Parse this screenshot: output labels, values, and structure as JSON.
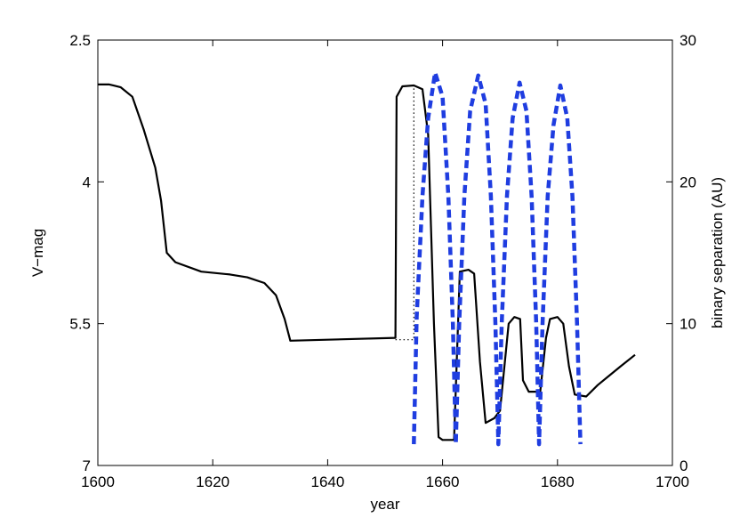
{
  "chart_data": {
    "type": "line",
    "title": "",
    "xlabel": "year",
    "ylabel_left": "V−mag",
    "ylabel_right": "binary separation (AU)",
    "xlim": [
      1600,
      1700
    ],
    "ylim_left": [
      7,
      2.5
    ],
    "ylim_right": [
      0,
      30
    ],
    "left_y_inverted": true,
    "grid": false,
    "legend": "none",
    "x_ticks": [
      "1600",
      "1620",
      "1640",
      "1660",
      "1680",
      "1700"
    ],
    "y_left_ticks": [
      "2.5",
      "4",
      "5.5",
      "7"
    ],
    "y_right_ticks": [
      "0",
      "10",
      "20",
      "30"
    ],
    "series": [
      {
        "axis": "left",
        "style": "solid",
        "color": "#000000",
        "points": [
          [
            1600,
            2.97
          ],
          [
            1602,
            2.97
          ],
          [
            1604,
            3.0
          ],
          [
            1606,
            3.1
          ],
          [
            1608,
            3.45
          ],
          [
            1610,
            3.85
          ],
          [
            1611,
            4.2
          ],
          [
            1612,
            4.75
          ],
          [
            1613.5,
            4.85
          ],
          [
            1618,
            4.95
          ],
          [
            1623,
            4.98
          ],
          [
            1626,
            5.01
          ],
          [
            1629,
            5.07
          ],
          [
            1631,
            5.2
          ],
          [
            1632.5,
            5.45
          ],
          [
            1633.5,
            5.68
          ],
          [
            1651.8,
            5.65
          ],
          [
            1652,
            3.1
          ],
          [
            1653,
            2.99
          ],
          [
            1655,
            2.98
          ],
          [
            1656.5,
            3.02
          ],
          [
            1657.5,
            3.5
          ],
          [
            1658.5,
            5.5
          ],
          [
            1659.3,
            6.7
          ],
          [
            1660,
            6.73
          ],
          [
            1662,
            6.73
          ],
          [
            1663,
            4.95
          ],
          [
            1664.5,
            4.93
          ],
          [
            1665.5,
            4.97
          ],
          [
            1666.5,
            5.9
          ],
          [
            1667.5,
            6.55
          ],
          [
            1669,
            6.5
          ],
          [
            1670,
            6.42
          ],
          [
            1671.5,
            5.5
          ],
          [
            1672.5,
            5.43
          ],
          [
            1673.5,
            5.45
          ],
          [
            1674,
            6.1
          ],
          [
            1675,
            6.22
          ],
          [
            1677,
            6.22
          ],
          [
            1678,
            5.65
          ],
          [
            1678.7,
            5.45
          ],
          [
            1680,
            5.43
          ],
          [
            1681,
            5.5
          ],
          [
            1682,
            5.95
          ],
          [
            1683,
            6.25
          ],
          [
            1685,
            6.27
          ],
          [
            1687,
            6.15
          ],
          [
            1689,
            6.05
          ],
          [
            1691,
            5.95
          ],
          [
            1693.5,
            5.83
          ]
        ]
      },
      {
        "axis": "left",
        "style": "dotted",
        "color": "#000000",
        "points": [
          [
            1651.8,
            5.67
          ],
          [
            1655,
            5.67
          ],
          [
            1655,
            2.99
          ]
        ]
      },
      {
        "axis": "right",
        "style": "dashed",
        "color": "#1f3de0",
        "points": [
          [
            1655,
            1.5
          ],
          [
            1655.5,
            10.5
          ],
          [
            1656.5,
            19
          ],
          [
            1657.5,
            24.5
          ],
          [
            1658.7,
            27.7
          ],
          [
            1660,
            26
          ],
          [
            1661,
            19
          ],
          [
            1661.8,
            10
          ],
          [
            1662.3,
            1.5
          ],
          [
            1662.9,
            10
          ],
          [
            1663.8,
            19
          ],
          [
            1664.8,
            25
          ],
          [
            1666.2,
            27.5
          ],
          [
            1667.5,
            25.5
          ],
          [
            1668.4,
            19
          ],
          [
            1669.2,
            10
          ],
          [
            1669.7,
            1.5
          ],
          [
            1670.3,
            10
          ],
          [
            1671.2,
            19
          ],
          [
            1672.2,
            24.5
          ],
          [
            1673.4,
            27
          ],
          [
            1674.6,
            25
          ],
          [
            1675.5,
            19
          ],
          [
            1676.3,
            10
          ],
          [
            1676.8,
            1.5
          ],
          [
            1677.4,
            10
          ],
          [
            1678.3,
            19
          ],
          [
            1679.3,
            24
          ],
          [
            1680.5,
            26.8
          ],
          [
            1681.7,
            24.5
          ],
          [
            1682.6,
            19
          ],
          [
            1683.4,
            10
          ],
          [
            1684,
            1.5
          ]
        ]
      }
    ]
  }
}
